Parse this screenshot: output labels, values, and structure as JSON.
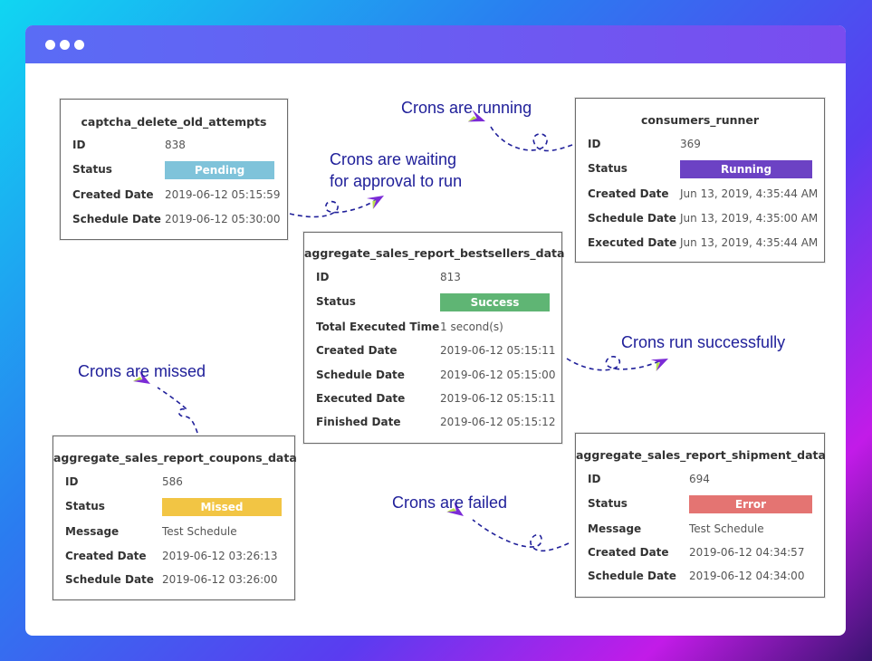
{
  "colors": {
    "pending": "#7fc3da",
    "running": "#6c42c4",
    "success": "#5fb574",
    "missed": "#f2c544",
    "error": "#e47472",
    "annotation": "#20209a",
    "window_bar": "#5a6cf5"
  },
  "icons": [
    "window-dot-icon",
    "paper-plane-icon"
  ],
  "annotations": {
    "running": "Crons are running",
    "waiting_line1": "Crons are waiting",
    "waiting_line2": "for approval to run",
    "success": "Crons run successfully",
    "missed": "Crons are missed",
    "failed": "Crons are failed"
  },
  "cards": {
    "pending": {
      "title": "captcha_delete_old_attempts",
      "rows": [
        {
          "label": "ID",
          "value": "838"
        },
        {
          "label": "Status",
          "value": "Pending"
        },
        {
          "label": "Created Date",
          "value": "2019-06-12 05:15:59"
        },
        {
          "label": "Schedule Date",
          "value": "2019-06-12 05:30:00"
        }
      ]
    },
    "running": {
      "title": "consumers_runner",
      "rows": [
        {
          "label": "ID",
          "value": "369"
        },
        {
          "label": "Status",
          "value": "Running"
        },
        {
          "label": "Created Date",
          "value": "Jun 13, 2019, 4:35:44 AM"
        },
        {
          "label": "Schedule Date",
          "value": "Jun 13, 2019, 4:35:00 AM"
        },
        {
          "label": "Executed Date",
          "value": "Jun 13, 2019, 4:35:44 AM"
        }
      ]
    },
    "success": {
      "title": "aggregate_sales_report_bestsellers_data",
      "rows": [
        {
          "label": "ID",
          "value": "813"
        },
        {
          "label": "Status",
          "value": "Success"
        },
        {
          "label": "Total Executed Time",
          "value": "1 second(s)"
        },
        {
          "label": "Created Date",
          "value": "2019-06-12 05:15:11"
        },
        {
          "label": "Schedule Date",
          "value": "2019-06-12 05:15:00"
        },
        {
          "label": "Executed Date",
          "value": "2019-06-12 05:15:11"
        },
        {
          "label": "Finished Date",
          "value": "2019-06-12 05:15:12"
        }
      ]
    },
    "missed": {
      "title": "aggregate_sales_report_coupons_data",
      "rows": [
        {
          "label": "ID",
          "value": "586"
        },
        {
          "label": "Status",
          "value": "Missed"
        },
        {
          "label": "Message",
          "value": "Test Schedule"
        },
        {
          "label": "Created Date",
          "value": "2019-06-12 03:26:13"
        },
        {
          "label": "Schedule Date",
          "value": "2019-06-12 03:26:00"
        }
      ]
    },
    "error": {
      "title": "aggregate_sales_report_shipment_data",
      "rows": [
        {
          "label": "ID",
          "value": "694"
        },
        {
          "label": "Status",
          "value": "Error"
        },
        {
          "label": "Message",
          "value": "Test Schedule"
        },
        {
          "label": "Created Date",
          "value": "2019-06-12 04:34:57"
        },
        {
          "label": "Schedule Date",
          "value": "2019-06-12 04:34:00"
        }
      ]
    }
  }
}
